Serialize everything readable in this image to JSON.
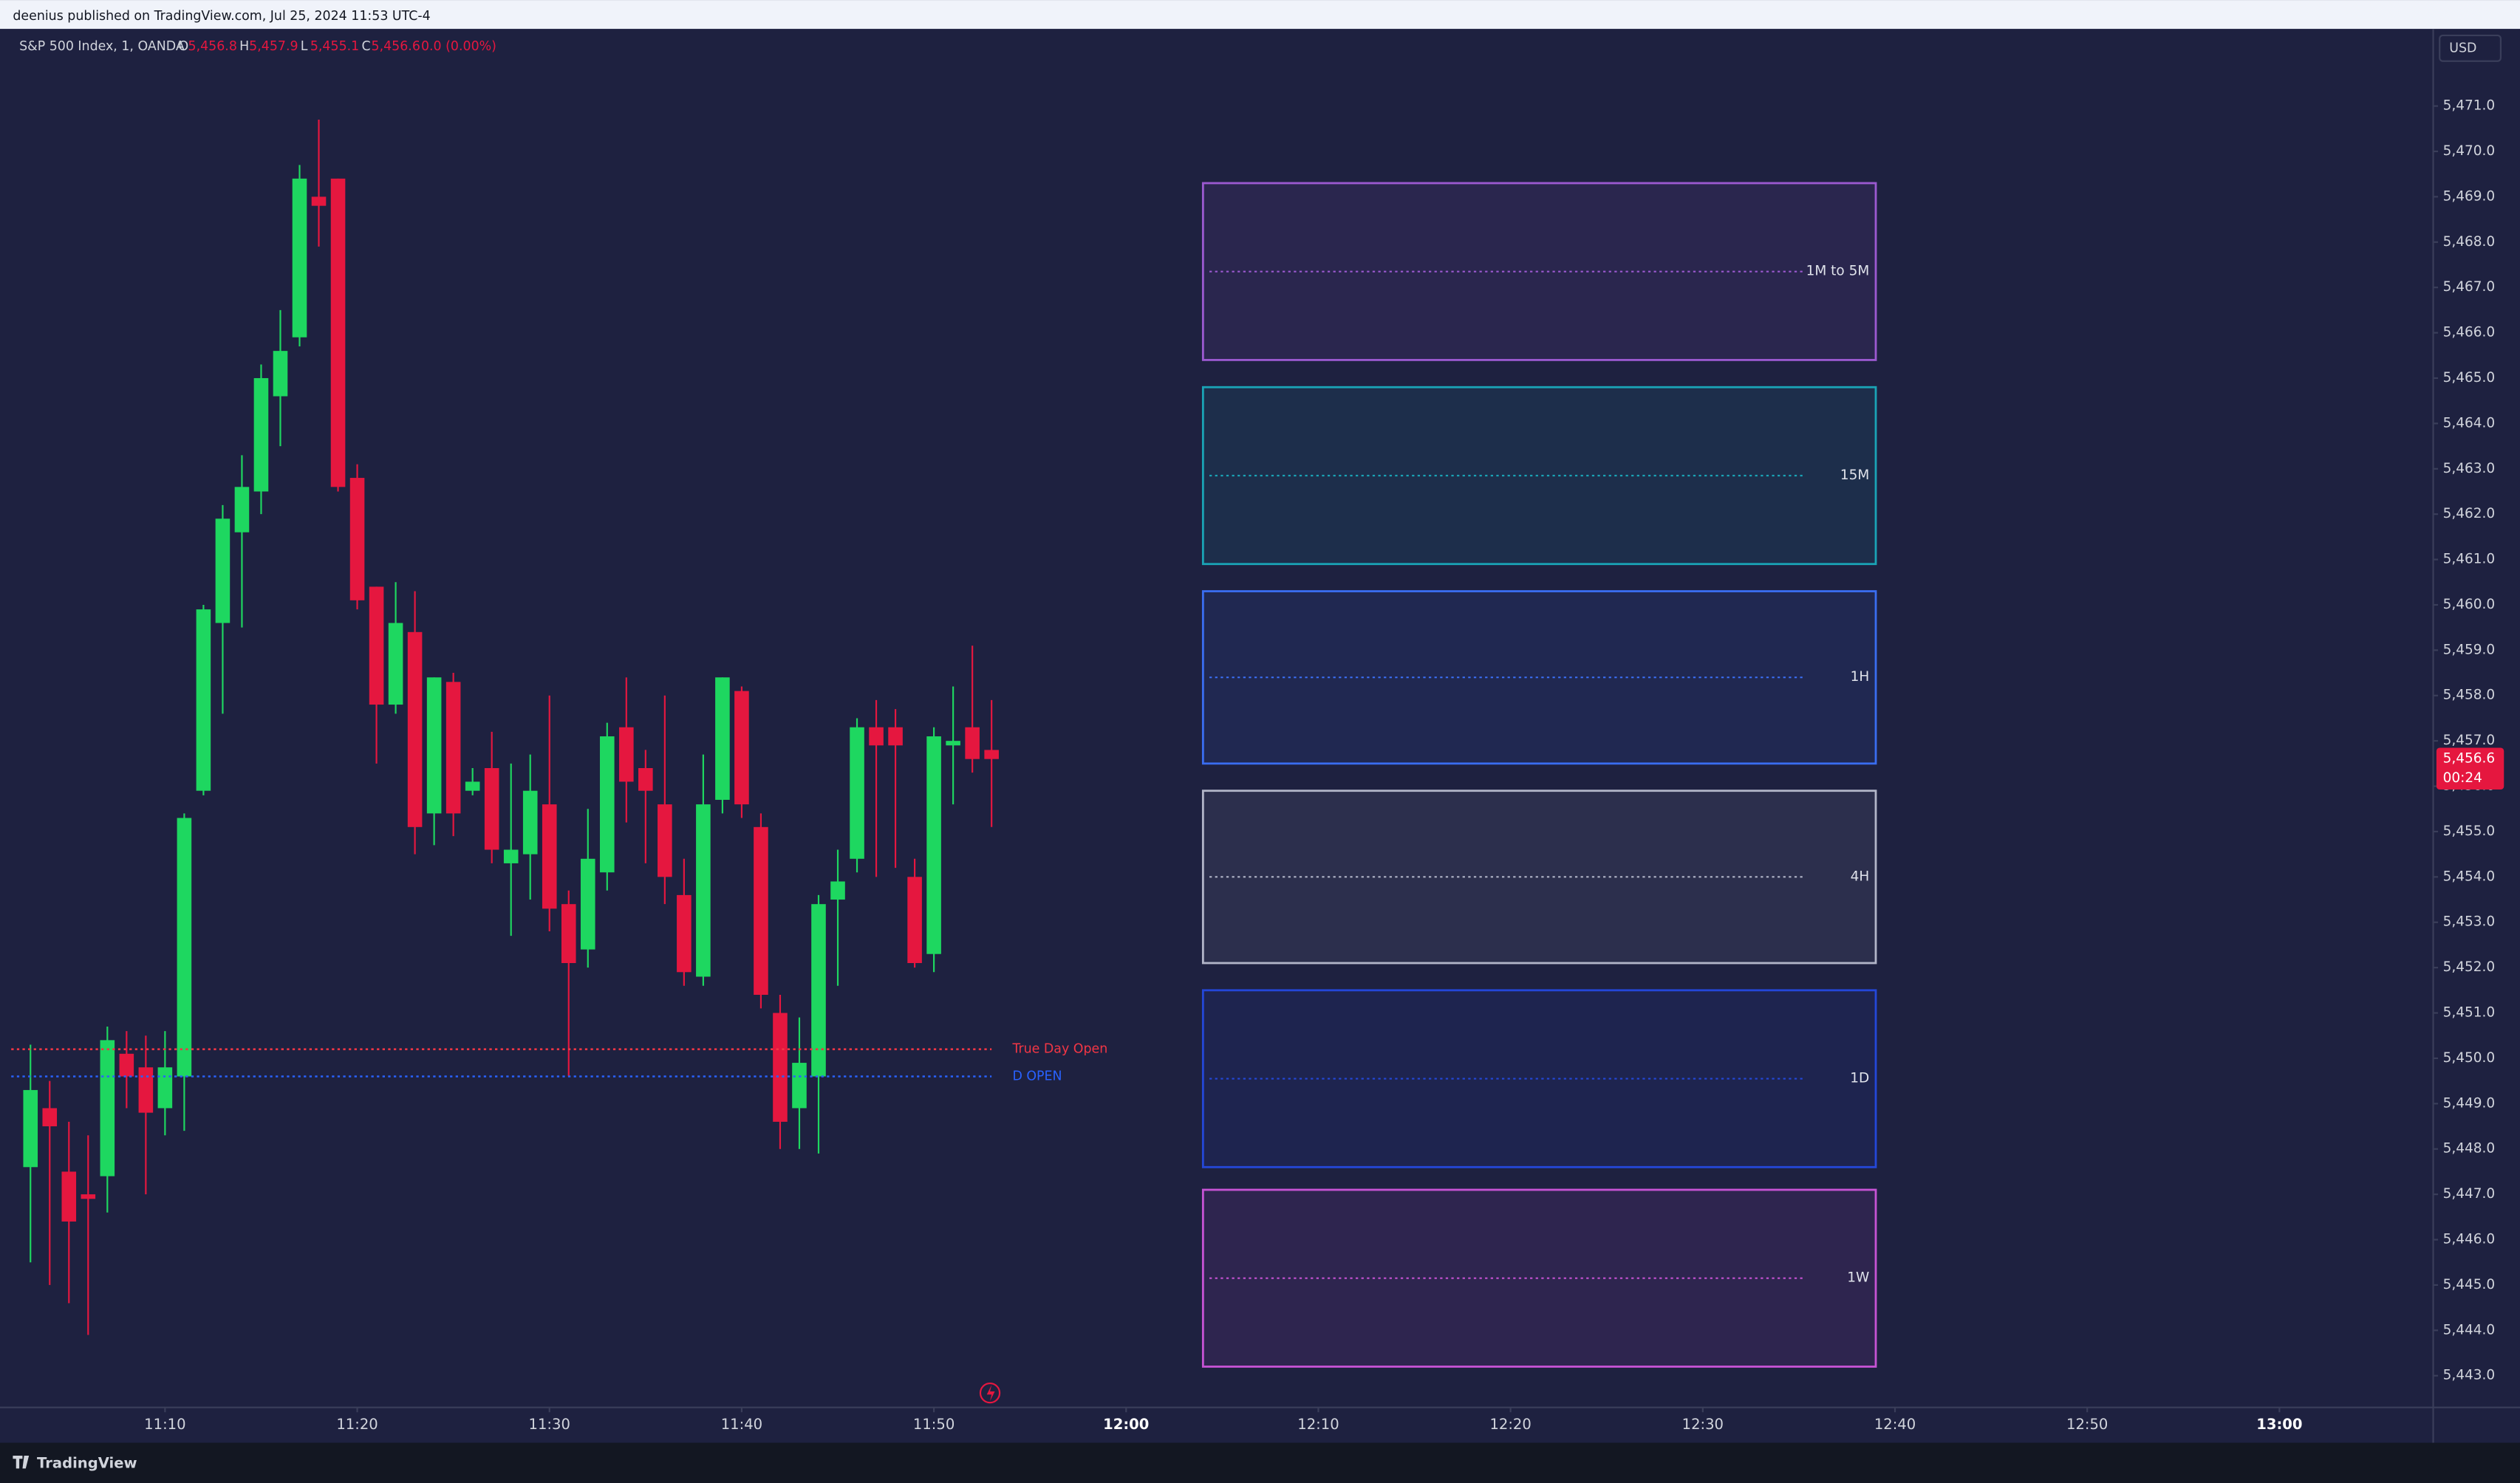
{
  "header": {
    "text": "deenius published on TradingView.com, Jul 25, 2024 11:53 UTC-4"
  },
  "footer": {
    "brand": "TradingView"
  },
  "chart_data": {
    "type": "candlestick",
    "symbol": "S&P 500 Index, 1, OANDA",
    "legend": {
      "o_label": "O",
      "o": "5,456.8",
      "h_label": "H",
      "h": "5,457.9",
      "l_label": "L",
      "l": "5,455.1",
      "c_label": "C",
      "c": "5,456.6",
      "change": "0.0 (0.00%)"
    },
    "currency": "USD",
    "last_price_label": "5,456.6",
    "countdown": "00:24",
    "up_color": "#1ed760",
    "down_color": "#e5173f",
    "x": [
      "11:03",
      "11:04",
      "11:05",
      "11:06",
      "11:07",
      "11:08",
      "11:09",
      "11:10",
      "11:11",
      "11:12",
      "11:13",
      "11:14",
      "11:15",
      "11:16",
      "11:17",
      "11:18",
      "11:19",
      "11:20",
      "11:21",
      "11:22",
      "11:23",
      "11:24",
      "11:25",
      "11:26",
      "11:27",
      "11:28",
      "11:29",
      "11:30",
      "11:31",
      "11:32",
      "11:33",
      "11:34",
      "11:35",
      "11:36",
      "11:37",
      "11:38",
      "11:39",
      "11:40",
      "11:41",
      "11:42",
      "11:43",
      "11:44",
      "11:45",
      "11:46",
      "11:47",
      "11:48",
      "11:49",
      "11:50",
      "11:51",
      "11:52",
      "11:53"
    ],
    "open": [
      5447.6,
      5448.9,
      5447.5,
      5447.0,
      5447.4,
      5450.1,
      5449.8,
      5448.9,
      5449.6,
      5455.9,
      5459.6,
      5461.6,
      5462.5,
      5464.6,
      5465.9,
      5469.0,
      5469.4,
      5462.8,
      5460.4,
      5457.8,
      5459.4,
      5455.4,
      5458.3,
      5455.9,
      5456.4,
      5454.3,
      5454.5,
      5455.6,
      5453.4,
      5452.4,
      5454.1,
      5457.3,
      5456.4,
      5455.6,
      5453.6,
      5451.8,
      5455.7,
      5458.1,
      5455.1,
      5451.0,
      5448.9,
      5449.6,
      5453.5,
      5454.4,
      5457.3,
      5457.3,
      5454.0,
      5452.3,
      5456.9,
      5457.3,
      5456.8
    ],
    "high": [
      5450.3,
      5449.5,
      5448.6,
      5448.3,
      5450.7,
      5450.6,
      5450.5,
      5450.6,
      5455.4,
      5460.0,
      5462.2,
      5463.3,
      5465.3,
      5466.5,
      5469.7,
      5470.7,
      5469.4,
      5463.1,
      5460.4,
      5460.5,
      5460.3,
      5458.4,
      5458.5,
      5456.4,
      5457.2,
      5456.5,
      5456.7,
      5458.0,
      5453.7,
      5455.5,
      5457.4,
      5458.4,
      5456.8,
      5458.0,
      5454.4,
      5456.7,
      5458.4,
      5458.2,
      5455.4,
      5451.4,
      5450.9,
      5453.6,
      5454.6,
      5457.5,
      5457.9,
      5457.7,
      5454.4,
      5457.3,
      5458.2,
      5459.1,
      5457.9
    ],
    "low": [
      5445.5,
      5445.0,
      5444.6,
      5443.9,
      5446.6,
      5448.9,
      5447.0,
      5448.3,
      5448.4,
      5455.8,
      5457.6,
      5459.5,
      5462.0,
      5463.5,
      5465.7,
      5467.9,
      5462.5,
      5459.9,
      5456.5,
      5457.6,
      5454.5,
      5454.7,
      5454.9,
      5455.8,
      5454.3,
      5452.7,
      5453.5,
      5452.8,
      5449.6,
      5452.0,
      5453.7,
      5455.2,
      5454.3,
      5453.4,
      5451.6,
      5451.6,
      5455.4,
      5455.3,
      5451.1,
      5448.0,
      5448.0,
      5447.9,
      5451.6,
      5454.1,
      5454.0,
      5454.2,
      5452.0,
      5451.9,
      5455.6,
      5456.3,
      5455.1
    ],
    "close": [
      5449.3,
      5448.5,
      5446.4,
      5446.9,
      5450.4,
      5449.6,
      5448.8,
      5449.8,
      5455.3,
      5459.9,
      5461.9,
      5462.6,
      5465.0,
      5465.6,
      5469.4,
      5468.8,
      5462.6,
      5460.1,
      5457.8,
      5459.6,
      5455.1,
      5458.4,
      5455.4,
      5456.1,
      5454.6,
      5454.6,
      5455.9,
      5453.3,
      5452.1,
      5454.4,
      5457.1,
      5456.1,
      5455.9,
      5454.0,
      5451.9,
      5455.6,
      5458.4,
      5455.6,
      5451.4,
      5448.6,
      5449.9,
      5453.4,
      5453.9,
      5457.3,
      5456.9,
      5456.9,
      5452.1,
      5457.1,
      5457.0,
      5456.6,
      5456.6
    ],
    "lines": [
      {
        "name": "True Day Open",
        "color": "#f23645",
        "value": 5450.2
      },
      {
        "name": "D OPEN",
        "color": "#2962ff",
        "value": 5449.6
      }
    ],
    "zones": [
      {
        "name": "1M to 5M",
        "color": "#9b59d0",
        "top": 5469.3,
        "bottom": 5465.4,
        "from": "12:04",
        "to": "12:39"
      },
      {
        "name": "15M",
        "color": "#1aa3b5",
        "top": 5464.8,
        "bottom": 5460.9,
        "from": "12:04",
        "to": "12:39"
      },
      {
        "name": "1H",
        "color": "#3a6df0",
        "top": 5460.3,
        "bottom": 5456.5,
        "from": "12:04",
        "to": "12:39"
      },
      {
        "name": "4H",
        "color": "#b2b5c8",
        "top": 5455.9,
        "bottom": 5452.1,
        "from": "12:04",
        "to": "12:39"
      },
      {
        "name": "1D",
        "color": "#2447d8",
        "top": 5451.5,
        "bottom": 5447.6,
        "from": "12:04",
        "to": "12:39"
      },
      {
        "name": "1W",
        "color": "#c653d4",
        "top": 5447.1,
        "bottom": 5443.2,
        "from": "12:04",
        "to": "12:39"
      }
    ],
    "xlim": [
      "11:02",
      "13:08"
    ],
    "xticks": [
      "11:10",
      "11:20",
      "11:30",
      "11:40",
      "11:50",
      "12:00",
      "12:10",
      "12:20",
      "12:30",
      "12:40",
      "12:50",
      "13:00"
    ],
    "bold_xticks": [
      "12:00",
      "13:00"
    ],
    "ylim": [
      5442.3,
      5472.7
    ],
    "yticks": [
      {
        "value": 5443,
        "label": "5,443.0"
      },
      {
        "value": 5444,
        "label": "5,444.0"
      },
      {
        "value": 5445,
        "label": "5,445.0"
      },
      {
        "value": 5446,
        "label": "5,446.0"
      },
      {
        "value": 5447,
        "label": "5,447.0"
      },
      {
        "value": 5448,
        "label": "5,448.0"
      },
      {
        "value": 5449,
        "label": "5,449.0"
      },
      {
        "value": 5450,
        "label": "5,450.0"
      },
      {
        "value": 5451,
        "label": "5,451.0"
      },
      {
        "value": 5452,
        "label": "5,452.0"
      },
      {
        "value": 5453,
        "label": "5,453.0"
      },
      {
        "value": 5454,
        "label": "5,454.0"
      },
      {
        "value": 5455,
        "label": "5,455.0"
      },
      {
        "value": 5456,
        "label": "5,456.0"
      },
      {
        "value": 5457,
        "label": "5,457.0"
      },
      {
        "value": 5458,
        "label": "5,458.0"
      },
      {
        "value": 5459,
        "label": "5,459.0"
      },
      {
        "value": 5460,
        "label": "5,460.0"
      },
      {
        "value": 5461,
        "label": "5,461.0"
      },
      {
        "value": 5462,
        "label": "5,462.0"
      },
      {
        "value": 5463,
        "label": "5,463.0"
      },
      {
        "value": 5464,
        "label": "5,464.0"
      },
      {
        "value": 5465,
        "label": "5,465.0"
      },
      {
        "value": 5466,
        "label": "5,466.0"
      },
      {
        "value": 5467,
        "label": "5,467.0"
      },
      {
        "value": 5468,
        "label": "5,468.0"
      },
      {
        "value": 5469,
        "label": "5,469.0"
      },
      {
        "value": 5470,
        "label": "5,470.0"
      },
      {
        "value": 5471,
        "label": "5,471.0"
      }
    ]
  }
}
